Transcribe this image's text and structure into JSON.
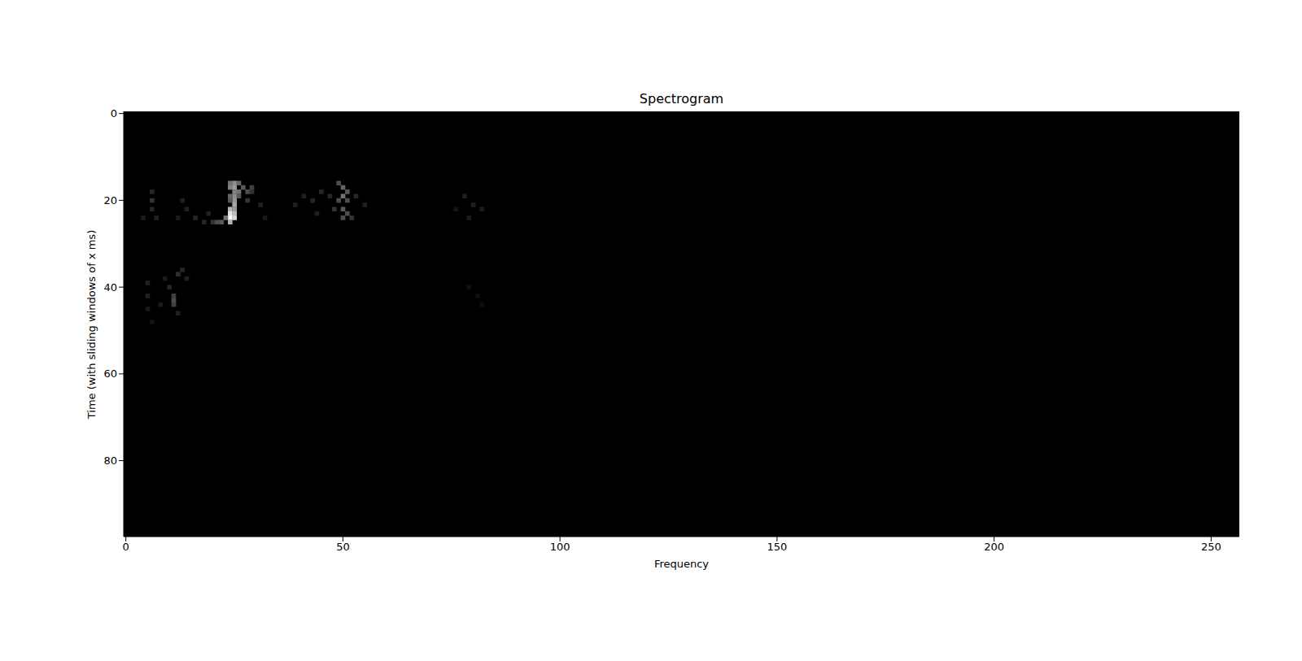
{
  "chart_data": {
    "type": "heatmap",
    "title": "Spectrogram",
    "x_label": "Frequency",
    "y_label": "Time (with sliding windows of x ms)",
    "xlim": [
      -0.5,
      256.5
    ],
    "xticks": [
      0,
      50,
      100,
      150,
      200,
      250
    ],
    "ylim": [
      -0.5,
      97.5
    ],
    "yticks": [
      0,
      20,
      40,
      60,
      80
    ],
    "cells": [
      [
        24,
        16,
        0.45
      ],
      [
        25,
        16,
        0.55
      ],
      [
        26,
        16,
        0.4
      ],
      [
        24,
        17,
        0.5
      ],
      [
        25,
        17,
        0.6
      ],
      [
        27,
        17,
        0.35
      ],
      [
        25,
        18,
        0.5
      ],
      [
        26,
        18,
        0.45
      ],
      [
        28,
        18,
        0.3
      ],
      [
        25,
        19,
        0.55
      ],
      [
        24,
        19,
        0.4
      ],
      [
        26,
        19,
        0.35
      ],
      [
        25,
        20,
        0.6
      ],
      [
        24,
        20,
        0.35
      ],
      [
        25,
        21,
        0.65
      ],
      [
        24,
        22,
        0.7
      ],
      [
        25,
        22,
        0.6
      ],
      [
        24,
        23,
        0.9
      ],
      [
        25,
        23,
        0.75
      ],
      [
        24,
        24,
        1.0
      ],
      [
        25,
        24,
        0.85
      ],
      [
        23,
        24,
        0.45
      ],
      [
        22,
        25,
        0.35
      ],
      [
        21,
        25,
        0.3
      ],
      [
        24,
        25,
        0.7
      ],
      [
        20,
        25,
        0.2
      ],
      [
        29,
        17,
        0.25
      ],
      [
        29,
        18,
        0.2
      ],
      [
        28,
        20,
        0.2
      ],
      [
        49,
        16,
        0.3
      ],
      [
        50,
        17,
        0.4
      ],
      [
        51,
        18,
        0.35
      ],
      [
        50,
        19,
        0.45
      ],
      [
        49,
        20,
        0.3
      ],
      [
        51,
        20,
        0.3
      ],
      [
        50,
        22,
        0.35
      ],
      [
        51,
        23,
        0.3
      ],
      [
        50,
        24,
        0.3
      ],
      [
        48,
        22,
        0.2
      ],
      [
        47,
        19,
        0.15
      ],
      [
        45,
        18,
        0.15
      ],
      [
        43,
        20,
        0.15
      ],
      [
        41,
        19,
        0.12
      ],
      [
        39,
        21,
        0.12
      ],
      [
        53,
        19,
        0.15
      ],
      [
        55,
        21,
        0.12
      ],
      [
        44,
        23,
        0.12
      ],
      [
        52,
        24,
        0.2
      ],
      [
        6,
        18,
        0.15
      ],
      [
        6,
        20,
        0.2
      ],
      [
        6,
        22,
        0.15
      ],
      [
        4,
        24,
        0.1
      ],
      [
        7,
        24,
        0.12
      ],
      [
        13,
        20,
        0.12
      ],
      [
        14,
        22,
        0.12
      ],
      [
        16,
        24,
        0.15
      ],
      [
        18,
        25,
        0.15
      ],
      [
        12,
        24,
        0.1
      ],
      [
        19,
        23,
        0.12
      ],
      [
        31,
        21,
        0.12
      ],
      [
        32,
        24,
        0.1
      ],
      [
        78,
        19,
        0.12
      ],
      [
        80,
        21,
        0.12
      ],
      [
        82,
        22,
        0.1
      ],
      [
        79,
        24,
        0.1
      ],
      [
        76,
        22,
        0.08
      ],
      [
        5,
        39,
        0.12
      ],
      [
        5,
        42,
        0.12
      ],
      [
        5,
        45,
        0.1
      ],
      [
        6,
        48,
        0.08
      ],
      [
        9,
        38,
        0.1
      ],
      [
        10,
        40,
        0.15
      ],
      [
        11,
        42,
        0.25
      ],
      [
        11,
        43,
        0.3
      ],
      [
        11,
        44,
        0.25
      ],
      [
        12,
        37,
        0.18
      ],
      [
        13,
        36,
        0.15
      ],
      [
        14,
        38,
        0.12
      ],
      [
        12,
        46,
        0.12
      ],
      [
        8,
        44,
        0.1
      ],
      [
        79,
        40,
        0.06
      ],
      [
        81,
        42,
        0.06
      ],
      [
        82,
        44,
        0.05
      ]
    ]
  }
}
